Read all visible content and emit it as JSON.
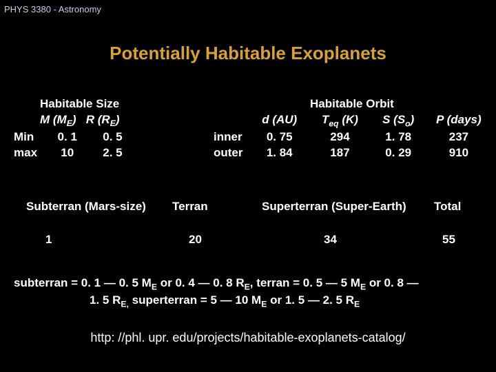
{
  "header": "PHYS 3380 - Astronomy",
  "title": "Potentially Habitable Exoplanets",
  "size": {
    "heading": "Habitable Size",
    "col1_hdr_M": "M (M",
    "col1_hdr_sub": "E",
    "col1_hdr_close": ")",
    "col2_hdr_R": "R (R",
    "col2_hdr_sub": "E",
    "col2_hdr_close": ")",
    "rows": [
      {
        "label": "Min",
        "m": "0. 1",
        "r": "0. 5"
      },
      {
        "label": "max",
        "m": "10",
        "r": "2. 5"
      }
    ]
  },
  "orbit": {
    "heading": "Habitable Orbit",
    "cols": {
      "d": "d (AU)",
      "Teq_pre": "T",
      "Teq_sub": "eq",
      "Teq_post": " (K)",
      "S_pre": "S (S",
      "S_sub": "o",
      "S_post": ")",
      "P": "P (days)"
    },
    "rows": [
      {
        "label": "inner",
        "d": "0. 75",
        "t": "294",
        "s": "1. 78",
        "p": "237"
      },
      {
        "label": "outer",
        "d": "1. 84",
        "t": "187",
        "s": "0. 29",
        "p": "910"
      }
    ]
  },
  "cats": {
    "labels": [
      "Subterran (Mars-size)",
      "Terran",
      "Superterran (Super-Earth)",
      "Total"
    ],
    "values": [
      "1",
      "20",
      "34",
      "55"
    ]
  },
  "defs": {
    "line1_a": "subterran = 0. 1 — 0. 5 M",
    "line1_b": " or 0. 4 — 0. 8 R",
    "line1_c": ", terran = 0. 5 — 5 M",
    "line1_d": " or 0. 8 —",
    "line2_a": "1. 5 R",
    "line2_b": " superterran = 5 — 10 M",
    "line2_c": " or 1. 5 — 2. 5 R",
    "sub_E": "E",
    "sub_Ecomma": "E,"
  },
  "url": "http: //phl. upr. edu/projects/habitable-exoplanets-catalog/"
}
